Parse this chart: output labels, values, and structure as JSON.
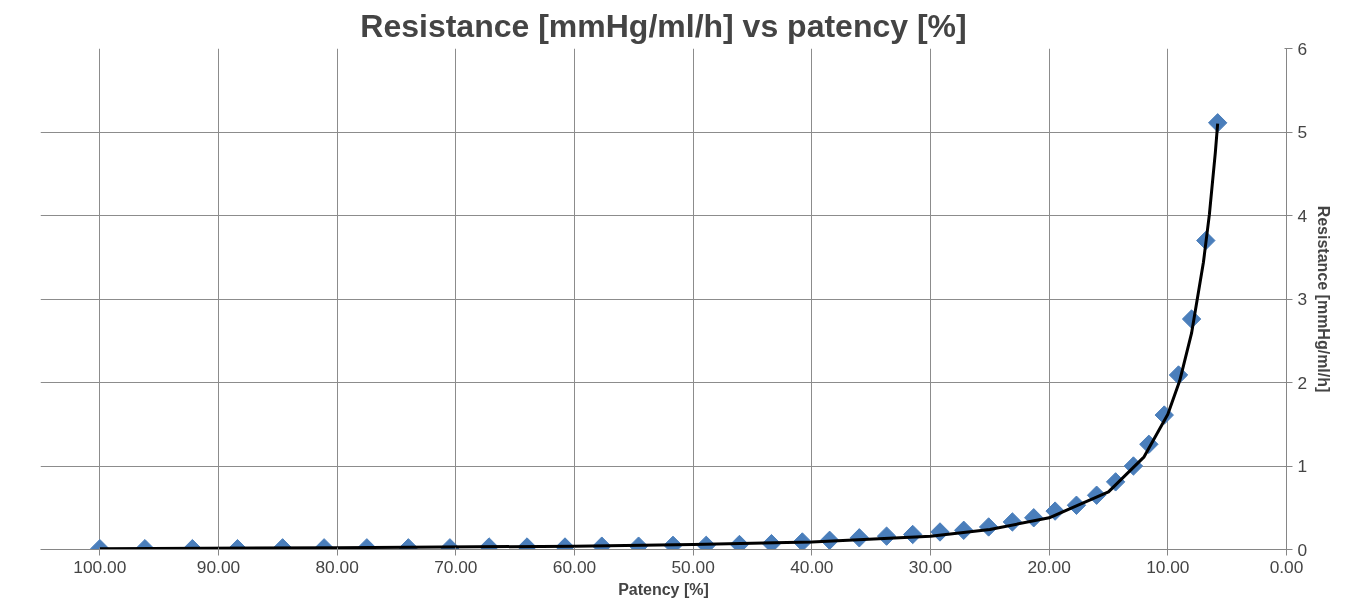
{
  "chart_data": {
    "type": "scatter",
    "title": "Resistance [mmHg/ml/h] vs patency [%]",
    "xlabel": "Patency [%]",
    "y2label": "Resistance [mmHg/ml/h]",
    "marker": "diamond",
    "grid": true,
    "xlim": [
      105,
      0
    ],
    "xticks": [
      {
        "value": 100,
        "label": "100.00"
      },
      {
        "value": 90,
        "label": "90.00"
      },
      {
        "value": 80,
        "label": "80.00"
      },
      {
        "value": 70,
        "label": "70.00"
      },
      {
        "value": 60,
        "label": "60.00"
      },
      {
        "value": 50,
        "label": "50.00"
      },
      {
        "value": 40,
        "label": "40.00"
      },
      {
        "value": 30,
        "label": "30.00"
      },
      {
        "value": 20,
        "label": "20.00"
      },
      {
        "value": 10,
        "label": "10.00"
      },
      {
        "value": 0,
        "label": "0.00"
      }
    ],
    "y2lim": [
      0,
      6
    ],
    "y2ticks": [
      0,
      1,
      2,
      3,
      4,
      5,
      6
    ],
    "series": [
      {
        "color": "#4a7ebb",
        "axis": "y2",
        "x": [
          100,
          96.2,
          92.2,
          88.4,
          84.6,
          81.1,
          77.5,
          74.0,
          70.5,
          67.2,
          64.0,
          60.8,
          57.7,
          54.6,
          51.7,
          48.9,
          46.1,
          43.4,
          40.8,
          38.5,
          36.0,
          33.7,
          31.5,
          29.2,
          27.2,
          25.1,
          23.1,
          21.3,
          19.5,
          17.7,
          16.0,
          14.4,
          12.9,
          11.6,
          10.3,
          9.1,
          8.0,
          6.8,
          5.8
        ],
        "values": [
          0.01,
          0.01,
          0.01,
          0.01,
          0.02,
          0.02,
          0.02,
          0.02,
          0.02,
          0.03,
          0.03,
          0.03,
          0.04,
          0.04,
          0.05,
          0.05,
          0.06,
          0.07,
          0.09,
          0.11,
          0.14,
          0.16,
          0.18,
          0.21,
          0.23,
          0.27,
          0.33,
          0.38,
          0.46,
          0.53,
          0.65,
          0.81,
          1.0,
          1.26,
          1.61,
          2.09,
          2.76,
          3.7,
          5.11
        ]
      },
      {
        "type": "line",
        "marker": "none",
        "color": "#000000",
        "axis": "y2",
        "x": [
          100,
          80,
          60,
          50,
          40,
          30,
          25,
          20,
          15,
          12,
          10,
          9,
          8,
          7,
          6.5,
          6,
          5.8
        ],
        "values": [
          0.01,
          0.02,
          0.04,
          0.06,
          0.09,
          0.16,
          0.24,
          0.38,
          0.69,
          1.11,
          1.62,
          2.02,
          2.59,
          3.44,
          4.01,
          4.75,
          5.1
        ]
      }
    ]
  }
}
